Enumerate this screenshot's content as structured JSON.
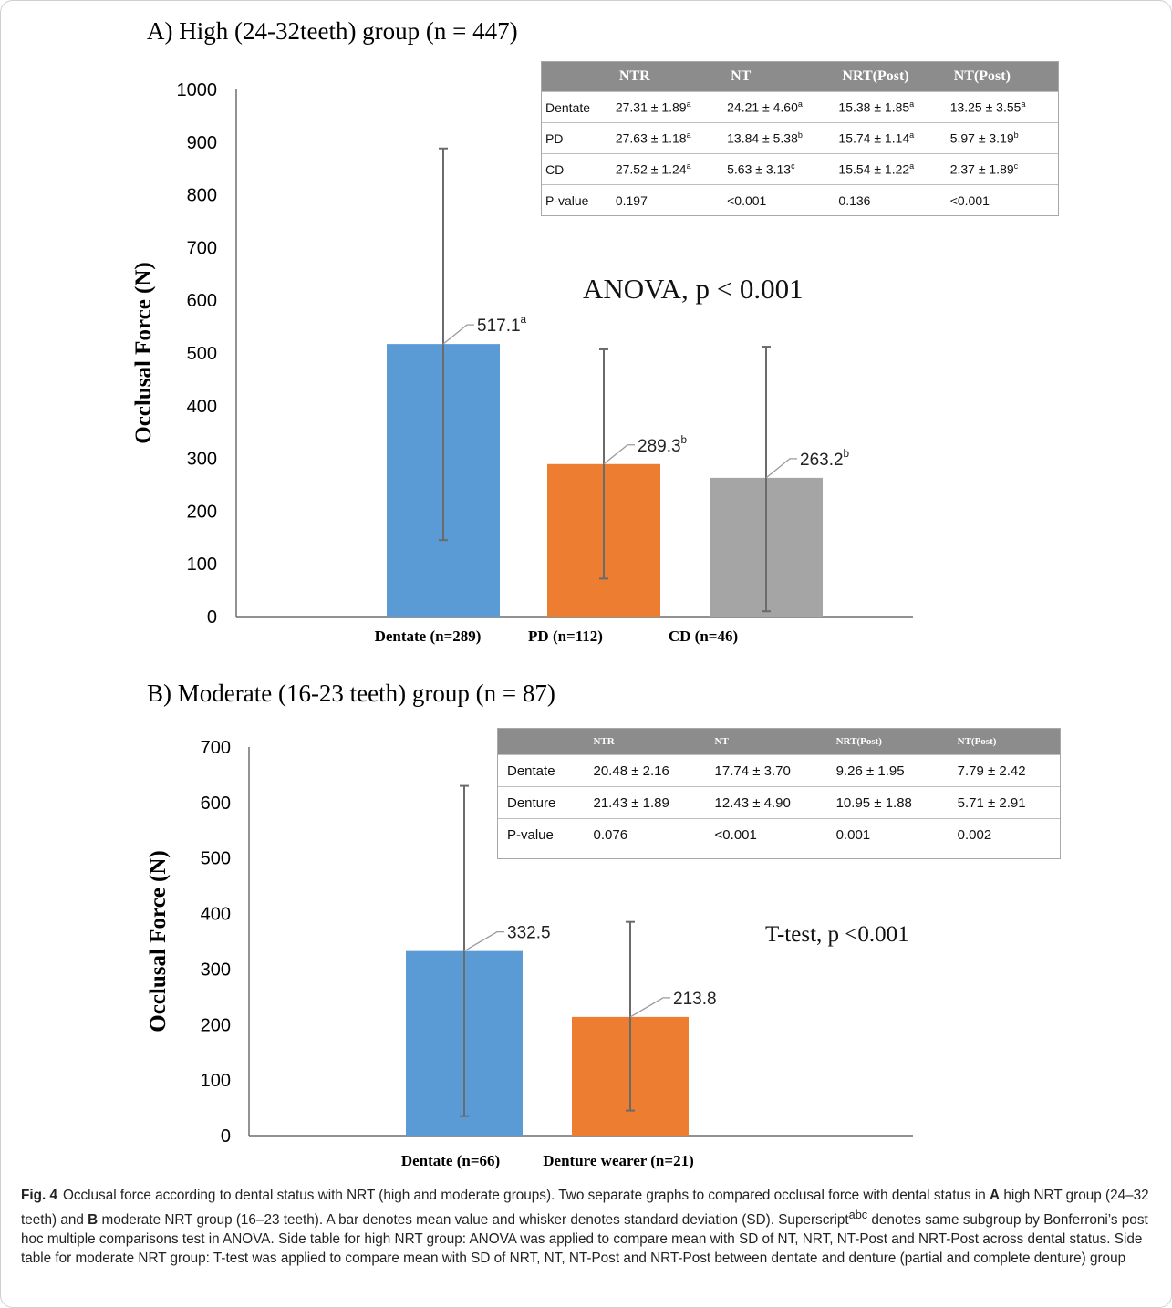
{
  "chart_data": [
    {
      "type": "bar",
      "title": "A) High (24-32teeth) group (n = 447)",
      "ylabel": "Occlusal Force (N)",
      "xlabel": "",
      "ylim": [
        0,
        1000
      ],
      "yticks": [
        "0",
        "100",
        "200",
        "300",
        "400",
        "500",
        "600",
        "700",
        "800",
        "900",
        "1000"
      ],
      "categories": [
        "Dentate (n=289)",
        "PD (n=112)",
        "CD  (n=46)"
      ],
      "values": [
        517.1,
        289.3,
        263.2
      ],
      "error_low": [
        145,
        72,
        10
      ],
      "error_high": [
        888,
        507,
        512
      ],
      "data_labels": [
        {
          "value": "517.1",
          "sup": "a"
        },
        {
          "value": "289.3",
          "sup": "b"
        },
        {
          "value": "263.2",
          "sup": "b"
        }
      ],
      "colors": [
        "#5b9bd5",
        "#ed7d31",
        "#a5a5a5"
      ],
      "annotation": "ANOVA,  p < 0.001",
      "grid": false,
      "legend": "none"
    },
    {
      "type": "bar",
      "title": "B) Moderate (16-23 teeth) group (n = 87)",
      "ylabel": "Occlusal Force (N)",
      "xlabel": "",
      "ylim": [
        0,
        700
      ],
      "yticks": [
        "0",
        "100",
        "200",
        "300",
        "400",
        "500",
        "600",
        "700"
      ],
      "categories": [
        "Dentate (n=66)",
        "Denture wearer (n=21)"
      ],
      "values": [
        332.5,
        213.8
      ],
      "error_low": [
        35,
        45
      ],
      "error_high": [
        630,
        385
      ],
      "data_labels": [
        {
          "value": "332.5",
          "sup": ""
        },
        {
          "value": "213.8",
          "sup": ""
        }
      ],
      "colors": [
        "#5b9bd5",
        "#ed7d31"
      ],
      "annotation": "T-test, p <0.001",
      "grid": false,
      "legend": "none"
    }
  ],
  "table_a": {
    "headers": [
      "",
      "NTR",
      "NT",
      "NRT(Post)",
      "NT(Post)"
    ],
    "rows": [
      {
        "label": "Dentate",
        "cells": [
          {
            "v": "27.31 ± 1.89",
            "s": "a"
          },
          {
            "v": "24.21 ± 4.60",
            "s": "a"
          },
          {
            "v": "15.38 ± 1.85",
            "s": "a"
          },
          {
            "v": "13.25 ± 3.55",
            "s": "a"
          }
        ]
      },
      {
        "label": "PD",
        "cells": [
          {
            "v": "27.63 ± 1.18",
            "s": "a"
          },
          {
            "v": "13.84 ± 5.38",
            "s": "b"
          },
          {
            "v": "15.74 ± 1.14",
            "s": "a"
          },
          {
            "v": "5.97 ± 3.19",
            "s": "b"
          }
        ]
      },
      {
        "label": "CD",
        "cells": [
          {
            "v": "27.52 ± 1.24",
            "s": "a"
          },
          {
            "v": "5.63 ± 3.13",
            "s": "c"
          },
          {
            "v": "15.54 ± 1.22",
            "s": "a"
          },
          {
            "v": "2.37 ± 1.89",
            "s": "c"
          }
        ]
      },
      {
        "label": "P-value",
        "cells": [
          {
            "v": "0.197",
            "s": ""
          },
          {
            "v": "<0.001",
            "s": ""
          },
          {
            "v": "0.136",
            "s": ""
          },
          {
            "v": "<0.001",
            "s": ""
          }
        ]
      }
    ]
  },
  "table_b": {
    "headers": [
      "",
      "NTR",
      "NT",
      "NRT(Post)",
      "NT(Post)"
    ],
    "rows": [
      {
        "label": "Dentate",
        "cells": [
          {
            "v": "20.48 ± 2.16",
            "s": ""
          },
          {
            "v": "17.74 ± 3.70",
            "s": ""
          },
          {
            "v": "9.26 ± 1.95",
            "s": ""
          },
          {
            "v": "7.79 ± 2.42",
            "s": ""
          }
        ]
      },
      {
        "label": "Denture",
        "cells": [
          {
            "v": "21.43 ± 1.89",
            "s": ""
          },
          {
            "v": "12.43 ± 4.90",
            "s": ""
          },
          {
            "v": "10.95 ± 1.88",
            "s": ""
          },
          {
            "v": "5.71 ± 2.91",
            "s": ""
          }
        ]
      },
      {
        "label": "P-value",
        "cells": [
          {
            "v": "0.076",
            "s": ""
          },
          {
            "v": "<0.001",
            "s": ""
          },
          {
            "v": "0.001",
            "s": ""
          },
          {
            "v": "0.002",
            "s": ""
          }
        ]
      }
    ]
  },
  "caption": {
    "label": "Fig. 4",
    "segments": [
      {
        "t": "Occlusal force according to dental status with NRT (high and moderate groups). Two separate graphs to compared occlusal force with dental status in "
      },
      {
        "t": "A",
        "b": true
      },
      {
        "t": " high NRT group (24–32 teeth) and "
      },
      {
        "t": "B",
        "b": true
      },
      {
        "t": " moderate NRT group (16–23 teeth). A bar denotes mean value and whisker denotes standard deviation (SD). Superscript"
      },
      {
        "t": "abc",
        "sup": true
      },
      {
        "t": " denotes same subgroup by Bonferroni’s post hoc multiple comparisons test in ANOVA. Side table for high NRT group: ANOVA was applied to compare mean with SD of NT, NRT, NT-Post and NRT-Post across dental status. Side table for moderate NRT group: T-test was applied to compare mean with SD of NRT, NT, NT-Post and NRT-Post between dentate and denture (partial and complete denture) group"
      }
    ]
  }
}
